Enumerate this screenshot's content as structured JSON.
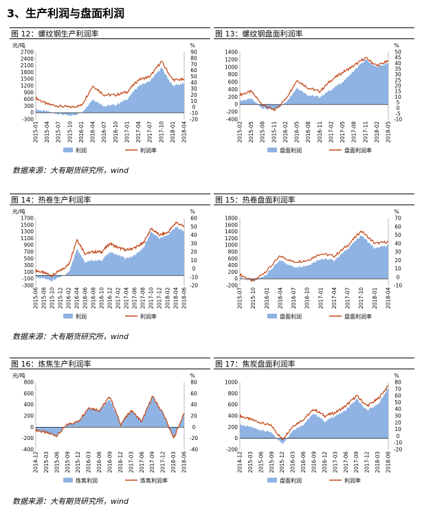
{
  "section": {
    "title": "3、生产利润与盘面利润"
  },
  "sources": [
    "数据来源：大有期货研究所，wind",
    "数据来源：大有期货研究所，wind",
    "数据来源：大有期货研究所，wind"
  ],
  "colors": {
    "area": "#8fb3e3",
    "line": "#c0410f"
  },
  "panels": [
    {
      "title": "图 12：螺纹钢生产利润率",
      "left_unit": "元/吨",
      "right_unit": "%",
      "left_ticks": [
        "2700",
        "2400",
        "2100",
        "1800",
        "1500",
        "1200",
        "900",
        "600",
        "300",
        "0",
        "-300"
      ],
      "right_ticks": [
        "90",
        "80",
        "70",
        "60",
        "50",
        "40",
        "30",
        "20",
        "10",
        "0",
        "-10",
        "-20"
      ],
      "x_ticks": [
        "2015-01",
        "2015-04",
        "2015-07",
        "2015-10",
        "2016-01",
        "2016-04",
        "2016-07",
        "2016-10",
        "2017-01",
        "2017-04",
        "2017-07",
        "2017-10",
        "2018-01",
        "2018-04"
      ],
      "legend": [
        "利润",
        "利润率"
      ]
    },
    {
      "title": "图 13：螺纹钢盘面利润率",
      "left_unit": "",
      "right_unit": "%",
      "left_ticks": [
        "1400",
        "1200",
        "1000",
        "800",
        "600",
        "400",
        "200",
        "0",
        "-200",
        "-400"
      ],
      "right_ticks": [
        "50",
        "45",
        "40",
        "35",
        "30",
        "25",
        "20",
        "15",
        "10",
        "5",
        "0",
        "-5",
        "-10"
      ],
      "x_ticks": [
        "2015-02",
        "2015-05",
        "2015-08",
        "2015-11",
        "2016-02",
        "2016-05",
        "2016-08",
        "2016-11",
        "2017-02",
        "2017-05",
        "2017-08",
        "2017-11",
        "2018-02",
        "2018-05"
      ],
      "legend": [
        "盘面利润",
        "盘面利润率"
      ]
    },
    {
      "title": "图 14：热卷生产利润率",
      "left_unit": "元/吨",
      "right_unit": "%",
      "left_ticks": [
        "1700",
        "1500",
        "1300",
        "1100",
        "900",
        "700",
        "500",
        "300",
        "100",
        "-100",
        "-300"
      ],
      "right_ticks": [
        "60",
        "50",
        "40",
        "30",
        "20",
        "10",
        "0",
        "-10",
        "-20"
      ],
      "x_ticks": [
        "2015-06",
        "2015-08",
        "2015-10",
        "2015-12",
        "2016-02",
        "2016-04",
        "2016-06",
        "2016-08",
        "2016-10",
        "2016-12",
        "2017-02",
        "2017-04",
        "2017-06",
        "2017-08",
        "2017-10",
        "2017-12",
        "2018-02",
        "2018-04",
        "2018-06"
      ],
      "legend": [
        "利润",
        "利润率"
      ]
    },
    {
      "title": "图 15：热卷盘面利润率",
      "left_unit": "",
      "right_unit": "%",
      "left_ticks": [
        "1800",
        "1600",
        "1400",
        "1200",
        "1000",
        "800",
        "600",
        "400",
        "200",
        "0",
        "-200"
      ],
      "right_ticks": [
        "70",
        "60",
        "50",
        "40",
        "30",
        "20",
        "10",
        "0",
        "-10"
      ],
      "x_ticks": [
        "2015-07",
        "2015-10",
        "2016-01",
        "2016-04",
        "2016-07",
        "2016-10",
        "2017-01",
        "2017-04",
        "2017-07",
        "2017-10",
        "2018-01",
        "2018-04"
      ],
      "legend": [
        "盘面利润",
        "盘面利润率"
      ]
    },
    {
      "title": "图 16：炼焦生产利润率",
      "left_unit": "元/吨",
      "right_unit": "%",
      "left_ticks": [
        "800",
        "600",
        "400",
        "200",
        "0",
        "-200",
        "-400"
      ],
      "right_ticks": [
        "80",
        "60",
        "40",
        "20",
        "0",
        "-20",
        "-40"
      ],
      "x_ticks": [
        "2014-12",
        "2015-03",
        "2015-06",
        "2015-09",
        "2015-12",
        "2016-03",
        "2016-06",
        "2016-09",
        "2016-12",
        "2017-03",
        "2017-06",
        "2017-09",
        "2017-12",
        "2018-03",
        "2018-06"
      ],
      "legend": [
        "炼焦利润",
        "炼焦利润率"
      ]
    },
    {
      "title": "图 17：焦炭盘面利润率",
      "left_unit": "",
      "right_unit": "%",
      "left_ticks": [
        "1000",
        "800",
        "600",
        "400",
        "200",
        "0",
        "-200"
      ],
      "right_ticks": [
        "80",
        "70",
        "60",
        "50",
        "40",
        "30",
        "20",
        "10",
        "0",
        "-10",
        "-20"
      ],
      "x_ticks": [
        "2014-12",
        "2015-03",
        "2015-06",
        "2015-09",
        "2015-12",
        "2016-03",
        "2016-06",
        "2016-09",
        "2016-12",
        "2017-03",
        "2017-06",
        "2017-09",
        "2017-12",
        "2018-03",
        "2018-06"
      ],
      "legend": [
        "盘面利润",
        "利润率"
      ]
    }
  ],
  "chart_data": [
    {
      "type": "area",
      "title": "图 12：螺纹钢生产利润率",
      "ylabel": "元/吨",
      "ylim": [
        -300,
        2700
      ],
      "y2label": "%",
      "y2lim": [
        -20,
        90
      ],
      "x": [
        "2015-01",
        "2015-04",
        "2015-07",
        "2015-10",
        "2016-01",
        "2016-04",
        "2016-07",
        "2016-10",
        "2017-01",
        "2017-04",
        "2017-07",
        "2017-10",
        "2018-01",
        "2018-04"
      ],
      "series": [
        {
          "name": "利润",
          "axis": "left",
          "values": [
            150,
            50,
            -50,
            -150,
            0,
            600,
            300,
            350,
            600,
            1200,
            1400,
            2000,
            1200,
            1300
          ]
        },
        {
          "name": "利润率",
          "axis": "right",
          "values": [
            15,
            5,
            2,
            0,
            3,
            35,
            20,
            20,
            25,
            45,
            50,
            75,
            45,
            45
          ]
        }
      ]
    },
    {
      "type": "area",
      "title": "图 13：螺纹钢盘面利润率",
      "ylim": [
        -400,
        1400
      ],
      "y2label": "%",
      "y2lim": [
        -10,
        50
      ],
      "x": [
        "2015-02",
        "2015-05",
        "2015-08",
        "2015-11",
        "2016-02",
        "2016-05",
        "2016-08",
        "2016-11",
        "2017-02",
        "2017-05",
        "2017-08",
        "2017-11",
        "2018-02",
        "2018-05"
      ],
      "series": [
        {
          "name": "盘面利润",
          "axis": "left",
          "values": [
            100,
            150,
            -100,
            -150,
            50,
            450,
            250,
            200,
            400,
            600,
            900,
            1200,
            1000,
            1100
          ]
        },
        {
          "name": "盘面利润率",
          "axis": "right",
          "values": [
            12,
            15,
            3,
            -2,
            8,
            25,
            18,
            15,
            25,
            32,
            38,
            45,
            38,
            42
          ]
        }
      ]
    },
    {
      "type": "area",
      "title": "图 14：热卷生产利润率",
      "ylabel": "元/吨",
      "ylim": [
        -300,
        1700
      ],
      "y2label": "%",
      "y2lim": [
        -20,
        60
      ],
      "x": [
        "2015-06",
        "2015-08",
        "2015-10",
        "2015-12",
        "2016-02",
        "2016-04",
        "2016-06",
        "2016-08",
        "2016-10",
        "2016-12",
        "2017-02",
        "2017-04",
        "2017-06",
        "2017-08",
        "2017-10",
        "2017-12",
        "2018-02",
        "2018-04",
        "2018-06"
      ],
      "series": [
        {
          "name": "利润",
          "axis": "left",
          "values": [
            -50,
            -100,
            -150,
            -50,
            100,
            800,
            400,
            450,
            450,
            700,
            600,
            500,
            600,
            800,
            1300,
            1100,
            1200,
            1450,
            1300
          ]
        },
        {
          "name": "利润率",
          "axis": "right",
          "values": [
            -2,
            -5,
            -8,
            -2,
            5,
            35,
            18,
            20,
            20,
            30,
            25,
            22,
            25,
            30,
            48,
            40,
            43,
            55,
            50
          ]
        }
      ]
    },
    {
      "type": "area",
      "title": "图 15：热卷盘面利润率",
      "ylim": [
        -200,
        1800
      ],
      "y2label": "%",
      "y2lim": [
        -10,
        70
      ],
      "x": [
        "2015-07",
        "2015-10",
        "2016-01",
        "2016-04",
        "2016-07",
        "2016-10",
        "2017-01",
        "2017-04",
        "2017-07",
        "2017-10",
        "2018-01",
        "2018-04"
      ],
      "series": [
        {
          "name": "盘面利润",
          "axis": "left",
          "values": [
            50,
            -100,
            150,
            550,
            350,
            400,
            600,
            550,
            900,
            1300,
            900,
            1000
          ]
        },
        {
          "name": "盘面利润率",
          "axis": "right",
          "values": [
            3,
            -5,
            8,
            25,
            18,
            20,
            28,
            25,
            38,
            55,
            40,
            42
          ]
        }
      ]
    },
    {
      "type": "area",
      "title": "图 16：炼焦生产利润率",
      "ylabel": "元/吨",
      "ylim": [
        -400,
        800
      ],
      "y2label": "%",
      "y2lim": [
        -40,
        80
      ],
      "x": [
        "2014-12",
        "2015-03",
        "2015-06",
        "2015-09",
        "2015-12",
        "2016-03",
        "2016-06",
        "2016-09",
        "2016-12",
        "2017-03",
        "2017-06",
        "2017-09",
        "2017-12",
        "2018-03",
        "2018-06"
      ],
      "series": [
        {
          "name": "炼焦利润",
          "axis": "left",
          "values": [
            -50,
            -100,
            -150,
            50,
            100,
            350,
            300,
            500,
            50,
            300,
            100,
            550,
            250,
            -200,
            250
          ]
        },
        {
          "name": "炼焦利润率",
          "axis": "right",
          "values": [
            -5,
            -10,
            -15,
            5,
            10,
            35,
            30,
            55,
            5,
            30,
            10,
            55,
            25,
            -20,
            25
          ]
        }
      ]
    },
    {
      "type": "area",
      "title": "图 17：焦炭盘面利润率",
      "ylim": [
        -200,
        1000
      ],
      "y2label": "%",
      "y2lim": [
        -20,
        80
      ],
      "x": [
        "2014-12",
        "2015-03",
        "2015-06",
        "2015-09",
        "2015-12",
        "2016-03",
        "2016-06",
        "2016-09",
        "2016-12",
        "2017-03",
        "2017-06",
        "2017-09",
        "2017-12",
        "2018-03",
        "2018-06"
      ],
      "series": [
        {
          "name": "盘面利润",
          "axis": "left",
          "values": [
            250,
            200,
            150,
            100,
            -100,
            150,
            250,
            450,
            300,
            400,
            500,
            700,
            500,
            600,
            900
          ]
        },
        {
          "name": "利润率",
          "axis": "right",
          "values": [
            30,
            25,
            20,
            15,
            -5,
            15,
            25,
            40,
            30,
            35,
            45,
            60,
            45,
            55,
            75
          ]
        }
      ]
    }
  ]
}
